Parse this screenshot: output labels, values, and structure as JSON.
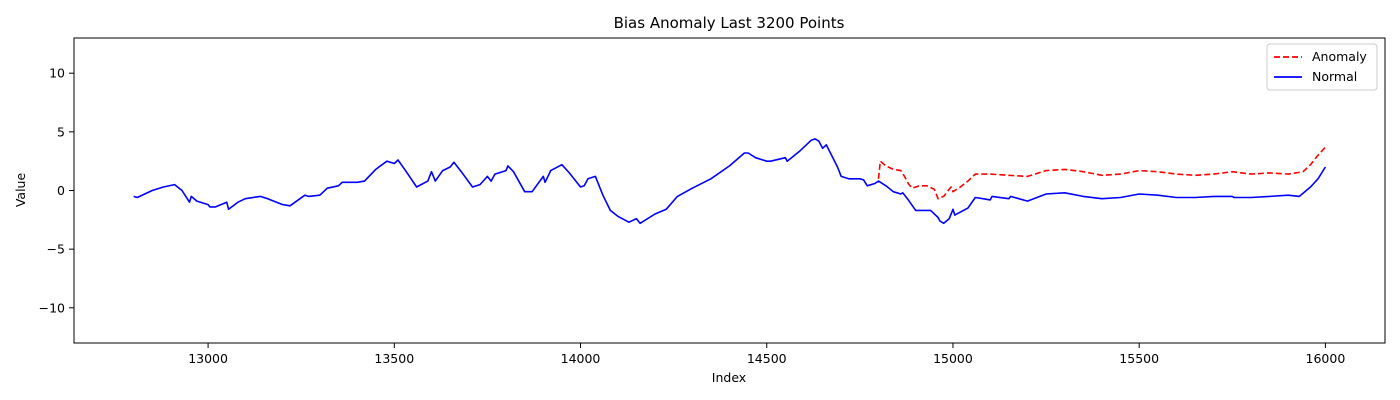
{
  "chart_data": {
    "type": "line",
    "title": "Bias Anomaly Last 3200 Points",
    "xlabel": "Index",
    "ylabel": "Value",
    "xlim": [
      12640,
      16160
    ],
    "ylim": [
      -13,
      13
    ],
    "xticks": [
      13000,
      13500,
      14000,
      14500,
      15000,
      15500,
      16000
    ],
    "yticks": [
      -10,
      -5,
      0,
      5,
      10
    ],
    "grid": false,
    "legend_position": "top-right",
    "series": [
      {
        "name": "Anomaly",
        "color": "#ff0000",
        "dash": true,
        "x": [
          14800,
          14805,
          14820,
          14840,
          14860,
          14870,
          14880,
          14890,
          14900,
          14910,
          14930,
          14950,
          14960,
          14965,
          14975,
          14990,
          14995,
          15000,
          15005,
          15020,
          15040,
          15060,
          15100,
          15150,
          15200,
          15250,
          15300,
          15350,
          15400,
          15450,
          15500,
          15550,
          15600,
          15650,
          15700,
          15750,
          15800,
          15850,
          15900,
          15920,
          15940,
          15960,
          15980,
          16000
        ],
        "y": [
          1.0,
          2.5,
          2.1,
          1.8,
          1.7,
          1.2,
          0.6,
          0.2,
          0.3,
          0.4,
          0.4,
          0.1,
          -0.7,
          -0.6,
          -0.5,
          0.1,
          0.3,
          -0.1,
          0.0,
          0.3,
          0.8,
          1.4,
          1.4,
          1.3,
          1.2,
          1.7,
          1.8,
          1.6,
          1.3,
          1.4,
          1.7,
          1.6,
          1.4,
          1.3,
          1.4,
          1.6,
          1.4,
          1.5,
          1.4,
          1.5,
          1.6,
          2.2,
          3.0,
          3.7
        ]
      },
      {
        "name": "Normal",
        "color": "#0000ff",
        "dash": false,
        "x": [
          12800,
          12810,
          12850,
          12880,
          12910,
          12930,
          12950,
          12955,
          12970,
          13000,
          13005,
          13020,
          13050,
          13055,
          13080,
          13100,
          13140,
          13160,
          13200,
          13220,
          13260,
          13270,
          13300,
          13320,
          13350,
          13360,
          13400,
          13420,
          13450,
          13480,
          13500,
          13510,
          13530,
          13560,
          13590,
          13600,
          13610,
          13630,
          13650,
          13660,
          13680,
          13710,
          13730,
          13750,
          13760,
          13770,
          13800,
          13805,
          13820,
          13850,
          13870,
          13900,
          13905,
          13920,
          13950,
          13970,
          14000,
          14010,
          14020,
          14040,
          14060,
          14080,
          14100,
          14130,
          14150,
          14160,
          14200,
          14230,
          14260,
          14300,
          14350,
          14400,
          14440,
          14450,
          14470,
          14500,
          14510,
          14550,
          14555,
          14590,
          14620,
          14630,
          14640,
          14650,
          14660,
          14690,
          14700,
          14720,
          14750,
          14760,
          14770,
          14790,
          14800,
          14820,
          14840,
          14860,
          14865,
          14880,
          14900,
          14920,
          14940,
          14960,
          14965,
          14975,
          14990,
          15000,
          15005,
          15040,
          15060,
          15080,
          15100,
          15105,
          15150,
          15155,
          15200,
          15250,
          15300,
          15350,
          15400,
          15450,
          15500,
          15550,
          15600,
          15650,
          15700,
          15750,
          15755,
          15800,
          15850,
          15900,
          15930,
          15960,
          15980,
          16000
        ],
        "y": [
          -0.5,
          -0.6,
          0.0,
          0.3,
          0.5,
          0.0,
          -1.0,
          -0.5,
          -0.9,
          -1.2,
          -1.4,
          -1.4,
          -1.0,
          -1.6,
          -1.0,
          -0.7,
          -0.5,
          -0.7,
          -1.2,
          -1.3,
          -0.4,
          -0.5,
          -0.4,
          0.2,
          0.4,
          0.7,
          0.7,
          0.8,
          1.8,
          2.5,
          2.3,
          2.6,
          1.7,
          0.3,
          0.8,
          1.6,
          0.8,
          1.7,
          2.0,
          2.4,
          1.6,
          0.3,
          0.5,
          1.2,
          0.8,
          1.4,
          1.7,
          2.1,
          1.6,
          -0.1,
          -0.1,
          1.2,
          0.7,
          1.7,
          2.2,
          1.5,
          0.3,
          0.4,
          1.0,
          1.2,
          -0.4,
          -1.7,
          -2.2,
          -2.7,
          -2.4,
          -2.8,
          -2.0,
          -1.6,
          -0.5,
          0.2,
          1.0,
          2.1,
          3.2,
          3.2,
          2.8,
          2.5,
          2.5,
          2.8,
          2.5,
          3.4,
          4.3,
          4.4,
          4.2,
          3.6,
          3.9,
          2.0,
          1.2,
          1.0,
          1.0,
          0.9,
          0.4,
          0.6,
          0.8,
          0.4,
          -0.1,
          -0.3,
          -0.2,
          -0.8,
          -1.7,
          -1.7,
          -1.7,
          -2.3,
          -2.6,
          -2.8,
          -2.4,
          -1.6,
          -2.1,
          -1.5,
          -0.6,
          -0.7,
          -0.8,
          -0.5,
          -0.7,
          -0.5,
          -0.9,
          -0.3,
          -0.2,
          -0.5,
          -0.7,
          -0.6,
          -0.3,
          -0.4,
          -0.6,
          -0.6,
          -0.5,
          -0.5,
          -0.6,
          -0.6,
          -0.5,
          -0.4,
          -0.5,
          0.3,
          1.0,
          2.0
        ]
      }
    ]
  }
}
